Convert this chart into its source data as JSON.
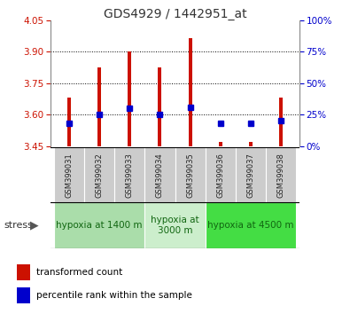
{
  "title": "GDS4929 / 1442951_at",
  "samples": [
    "GSM399031",
    "GSM399032",
    "GSM399033",
    "GSM399034",
    "GSM399035",
    "GSM399036",
    "GSM399037",
    "GSM399038"
  ],
  "red_values": [
    3.68,
    3.825,
    3.9,
    3.825,
    3.965,
    3.468,
    3.468,
    3.68
  ],
  "blue_values_pct": [
    18,
    25,
    30,
    25,
    31,
    18,
    18,
    20
  ],
  "ymin": 3.45,
  "ymax": 4.05,
  "yticks_left": [
    3.45,
    3.6,
    3.75,
    3.9,
    4.05
  ],
  "yticks_right_pct": [
    0,
    25,
    50,
    75,
    100
  ],
  "grid_lines": [
    3.6,
    3.75,
    3.9
  ],
  "bar_color": "#cc1100",
  "blue_color": "#0000cc",
  "groups": [
    {
      "label": "hypoxia at 1400 m",
      "indices": [
        0,
        1,
        2
      ],
      "color": "#aaddaa"
    },
    {
      "label": "hypoxia at\n3000 m",
      "indices": [
        3,
        4
      ],
      "color": "#cceecc"
    },
    {
      "label": "hypoxia at 4500 m",
      "indices": [
        5,
        6,
        7
      ],
      "color": "#44dd44"
    }
  ],
  "legend_red_label": "transformed count",
  "legend_blue_label": "percentile rank within the sample",
  "stress_label": "stress",
  "left_tick_color": "#cc1100",
  "right_tick_color": "#0000cc",
  "bar_width": 0.12
}
